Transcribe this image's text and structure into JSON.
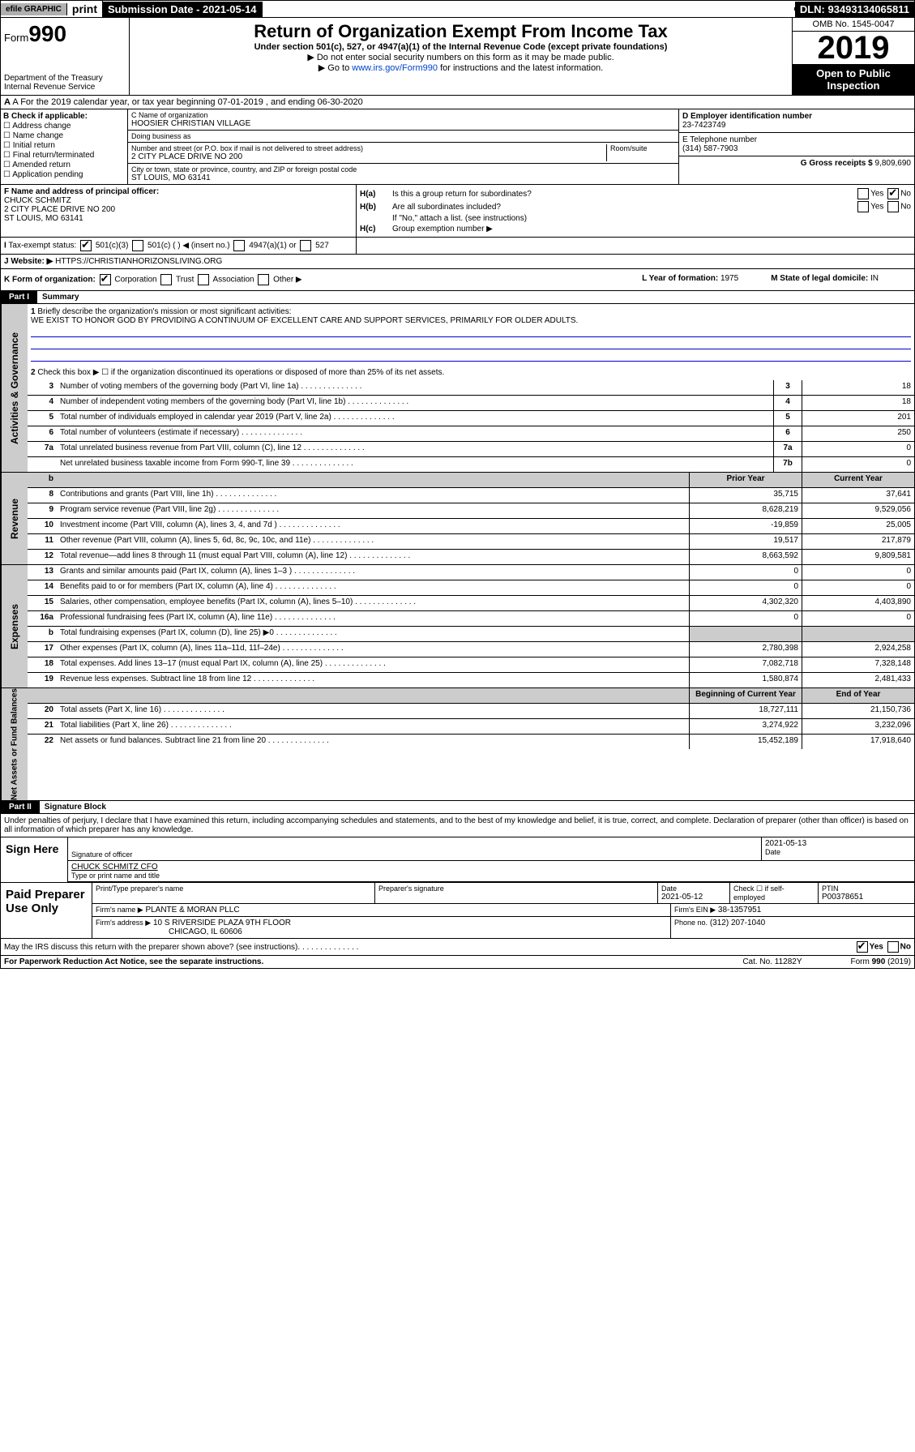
{
  "header": {
    "efile": "efile GRAPHIC",
    "print": "print",
    "submission": "Submission Date - 2021-05-14",
    "dln": "DLN: 93493134065811"
  },
  "formhead": {
    "form": "Form",
    "num": "990",
    "dept": "Department of the Treasury",
    "irs": "Internal Revenue Service",
    "title": "Return of Organization Exempt From Income Tax",
    "sub": "Under section 501(c), 527, or 4947(a)(1) of the Internal Revenue Code (except private foundations)",
    "note1": "▶ Do not enter social security numbers on this form as it may be made public.",
    "note2_pre": "▶ Go to ",
    "note2_link": "www.irs.gov/Form990",
    "note2_post": " for instructions and the latest information.",
    "omb": "OMB No. 1545-0047",
    "year": "2019",
    "open": "Open to Public Inspection"
  },
  "a": "A For the 2019 calendar year, or tax year beginning 07-01-2019    , and ending 06-30-2020",
  "b": {
    "title": "B Check if applicable:",
    "items": [
      "Address change",
      "Name change",
      "Initial return",
      "Final return/terminated",
      "Amended return",
      "Application pending"
    ]
  },
  "c": {
    "name_lbl": "C Name of organization",
    "name": "HOOSIER CHRISTIAN VILLAGE",
    "dba_lbl": "Doing business as",
    "addr_lbl": "Number and street (or P.O. box if mail is not delivered to street address)",
    "room_lbl": "Room/suite",
    "addr": "2 CITY PLACE DRIVE NO 200",
    "city_lbl": "City or town, state or province, country, and ZIP or foreign postal code",
    "city": "ST LOUIS, MO  63141"
  },
  "d": {
    "lbl": "D Employer identification number",
    "val": "23-7423749"
  },
  "e": {
    "lbl": "E Telephone number",
    "val": "(314) 587-7903"
  },
  "g": {
    "lbl": "G Gross receipts $",
    "val": "9,809,690"
  },
  "f": {
    "lbl": "F  Name and address of principal officer:",
    "name": "CHUCK SCHMITZ",
    "addr1": "2 CITY PLACE DRIVE NO 200",
    "addr2": "ST LOUIS, MO  63141"
  },
  "h": {
    "a_lbl": "Is this a group return for subordinates?",
    "b_lbl": "Are all subordinates included?",
    "b_note": "If \"No,\" attach a list. (see instructions)",
    "c_lbl": "Group exemption number ▶"
  },
  "i": {
    "lbl": "Tax-exempt status:",
    "o1": "501(c)(3)",
    "o2": "501(c) (  ) ◀ (insert no.)",
    "o3": "4947(a)(1) or",
    "o4": "527"
  },
  "j": {
    "lbl": "Website: ▶",
    "val": "HTTPS://CHRISTIANHORIZONSLIVING.ORG"
  },
  "k": {
    "lbl": "K Form of organization:",
    "o1": "Corporation",
    "o2": "Trust",
    "o3": "Association",
    "o4": "Other ▶"
  },
  "l": {
    "lbl": "L Year of formation:",
    "val": "1975"
  },
  "m": {
    "lbl": "M State of legal domicile:",
    "val": "IN"
  },
  "parts": {
    "p1": "Part I",
    "p1t": "Summary",
    "p2": "Part II",
    "p2t": "Signature Block"
  },
  "summary": {
    "l1_lbl": "Briefly describe the organization's mission or most significant activities:",
    "l1_text": "WE EXIST TO HONOR GOD BY PROVIDING A CONTINUUM OF EXCELLENT CARE AND SUPPORT SERVICES, PRIMARILY FOR OLDER ADULTS.",
    "l2": "Check this box ▶ ☐  if the organization discontinued its operations or disposed of more than 25% of its net assets.",
    "lines_num": [
      {
        "n": "3",
        "t": "Number of voting members of the governing body (Part VI, line 1a)",
        "b": "3",
        "v": "18"
      },
      {
        "n": "4",
        "t": "Number of independent voting members of the governing body (Part VI, line 1b)",
        "b": "4",
        "v": "18"
      },
      {
        "n": "5",
        "t": "Total number of individuals employed in calendar year 2019 (Part V, line 2a)",
        "b": "5",
        "v": "201"
      },
      {
        "n": "6",
        "t": "Total number of volunteers (estimate if necessary)",
        "b": "6",
        "v": "250"
      },
      {
        "n": "7a",
        "t": "Total unrelated business revenue from Part VIII, column (C), line 12",
        "b": "7a",
        "v": "0"
      },
      {
        "n": "",
        "t": "Net unrelated business taxable income from Form 990-T, line 39",
        "b": "7b",
        "v": "0"
      }
    ],
    "col1": "Prior Year",
    "col2": "Current Year",
    "rev": [
      {
        "n": "8",
        "t": "Contributions and grants (Part VIII, line 1h)",
        "p": "35,715",
        "c": "37,641"
      },
      {
        "n": "9",
        "t": "Program service revenue (Part VIII, line 2g)",
        "p": "8,628,219",
        "c": "9,529,056"
      },
      {
        "n": "10",
        "t": "Investment income (Part VIII, column (A), lines 3, 4, and 7d )",
        "p": "-19,859",
        "c": "25,005"
      },
      {
        "n": "11",
        "t": "Other revenue (Part VIII, column (A), lines 5, 6d, 8c, 9c, 10c, and 11e)",
        "p": "19,517",
        "c": "217,879"
      },
      {
        "n": "12",
        "t": "Total revenue—add lines 8 through 11 (must equal Part VIII, column (A), line 12)",
        "p": "8,663,592",
        "c": "9,809,581"
      }
    ],
    "exp": [
      {
        "n": "13",
        "t": "Grants and similar amounts paid (Part IX, column (A), lines 1–3 )",
        "p": "0",
        "c": "0"
      },
      {
        "n": "14",
        "t": "Benefits paid to or for members (Part IX, column (A), line 4)",
        "p": "0",
        "c": "0"
      },
      {
        "n": "15",
        "t": "Salaries, other compensation, employee benefits (Part IX, column (A), lines 5–10)",
        "p": "4,302,320",
        "c": "4,403,890"
      },
      {
        "n": "16a",
        "t": "Professional fundraising fees (Part IX, column (A), line 11e)",
        "p": "0",
        "c": "0"
      },
      {
        "n": "b",
        "t": "Total fundraising expenses (Part IX, column (D), line 25) ▶0",
        "p": "",
        "c": "",
        "shade": true
      },
      {
        "n": "17",
        "t": "Other expenses (Part IX, column (A), lines 11a–11d, 11f–24e)",
        "p": "2,780,398",
        "c": "2,924,258"
      },
      {
        "n": "18",
        "t": "Total expenses. Add lines 13–17 (must equal Part IX, column (A), line 25)",
        "p": "7,082,718",
        "c": "7,328,148"
      },
      {
        "n": "19",
        "t": "Revenue less expenses. Subtract line 18 from line 12",
        "p": "1,580,874",
        "c": "2,481,433"
      }
    ],
    "net_h1": "Beginning of Current Year",
    "net_h2": "End of Year",
    "net": [
      {
        "n": "20",
        "t": "Total assets (Part X, line 16)",
        "p": "18,727,111",
        "c": "21,150,736"
      },
      {
        "n": "21",
        "t": "Total liabilities (Part X, line 26)",
        "p": "3,274,922",
        "c": "3,232,096"
      },
      {
        "n": "22",
        "t": "Net assets or fund balances. Subtract line 21 from line 20",
        "p": "15,452,189",
        "c": "17,918,640"
      }
    ]
  },
  "vlabels": {
    "gov": "Activities & Governance",
    "rev": "Revenue",
    "exp": "Expenses",
    "net": "Net Assets or Fund Balances"
  },
  "sig": {
    "note": "Under penalties of perjury, I declare that I have examined this return, including accompanying schedules and statements, and to the best of my knowledge and belief, it is true, correct, and complete. Declaration of preparer (other than officer) is based on all information of which preparer has any knowledge.",
    "sign": "Sign Here",
    "sig_lbl": "Signature of officer",
    "date": "2021-05-13",
    "date_lbl": "Date",
    "name": "CHUCK SCHMITZ  CFO",
    "name_lbl": "Type or print name and title"
  },
  "prep": {
    "title": "Paid Preparer Use Only",
    "c1": "Print/Type preparer's name",
    "c2": "Preparer's signature",
    "c3": "Date",
    "c3v": "2021-05-12",
    "c4": "Check ☐ if self-employed",
    "c5": "PTIN",
    "c5v": "P00378651",
    "firm_lbl": "Firm's name   ▶",
    "firm": "PLANTE & MORAN PLLC",
    "ein_lbl": "Firm's EIN ▶",
    "ein": "38-1357951",
    "addr_lbl": "Firm's address ▶",
    "addr1": "10 S RIVERSIDE PLAZA 9TH FLOOR",
    "addr2": "CHICAGO, IL  60606",
    "ph_lbl": "Phone no.",
    "ph": "(312) 207-1040"
  },
  "discuss": "May the IRS discuss this return with the preparer shown above? (see instructions)",
  "footer": {
    "l": "For Paperwork Reduction Act Notice, see the separate instructions.",
    "m": "Cat. No. 11282Y",
    "r": "Form 990 (2019)"
  }
}
